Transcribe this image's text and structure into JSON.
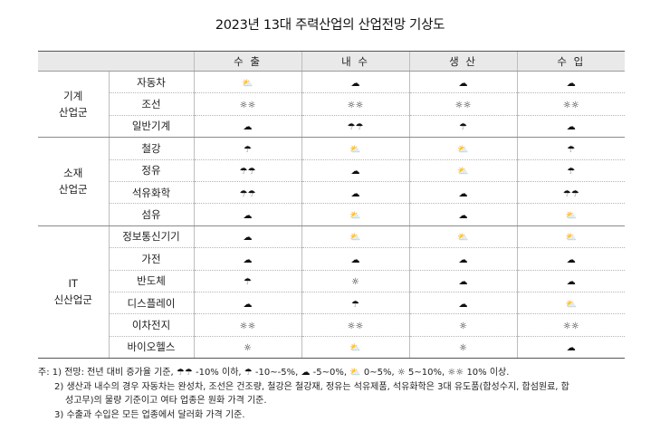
{
  "title": "2023년 13대 주력산업의 산업전망 기상도",
  "columns": [
    "수 출",
    "내 수",
    "생 산",
    "수 입"
  ],
  "icons": {
    "cloudy": "☁",
    "partly_cloudy": "⛅",
    "sunny": "☼",
    "sunny2": "☼☼",
    "umbrella": "☂",
    "umbrella2": "☂☂"
  },
  "groups": [
    {
      "name": "기계\n산업군",
      "rows": [
        {
          "item": "자동차",
          "cells": [
            "⛅",
            "☁",
            "☁",
            "☁"
          ]
        },
        {
          "item": "조선",
          "cells": [
            "☼☼",
            "☼☼",
            "☼☼",
            "☼☼"
          ]
        },
        {
          "item": "일반기계",
          "cells": [
            "☁",
            "☂☂",
            "☂",
            "☁"
          ]
        }
      ]
    },
    {
      "name": "소재\n산업군",
      "rows": [
        {
          "item": "철강",
          "cells": [
            "☂",
            "⛅",
            "⛅",
            "☂"
          ]
        },
        {
          "item": "정유",
          "cells": [
            "☂☂",
            "☁",
            "⛅",
            "☂"
          ]
        },
        {
          "item": "석유화학",
          "cells": [
            "☂☂",
            "☁",
            "☁",
            "☂☂"
          ]
        },
        {
          "item": "섬유",
          "cells": [
            "☁",
            "⛅",
            "☁",
            "⛅"
          ]
        }
      ]
    },
    {
      "name": "IT\n신산업군",
      "rows": [
        {
          "item": "정보통신기기",
          "cells": [
            "☁",
            "⛅",
            "⛅",
            "⛅"
          ]
        },
        {
          "item": "가전",
          "cells": [
            "☁",
            "☁",
            "☁",
            "☁"
          ]
        },
        {
          "item": "반도체",
          "cells": [
            "☂",
            "☼",
            "☁",
            "☁"
          ]
        },
        {
          "item": "디스플레이",
          "cells": [
            "☁",
            "☂",
            "☁",
            "⛅"
          ]
        },
        {
          "item": "이차전지",
          "cells": [
            "☼☼",
            "☼☼",
            "☼",
            "☼☼"
          ]
        },
        {
          "item": "바이오헬스",
          "cells": [
            "☼",
            "⛅",
            "☼",
            "☁"
          ]
        }
      ]
    }
  ],
  "notes": {
    "prefix": "주:",
    "note1_a": "1) 전망: 전년 대비 증가율 기준,",
    "note1_b": " -10% 이하,",
    "note1_c": " -10~-5%,",
    "note1_d": " -5~0%,",
    "note1_e": " 0~5%,",
    "note1_f": " 5~10%,",
    "note1_g": " 10% 이상.",
    "note2_line1": "2) 생산과 내수의 경우 자동차는 완성차, 조선은 건조량, 철강은 철강재, 정유는 석유제품, 석유화학은 3대 유도품(합성수지, 합섬원료, 합",
    "note2_line2": "성고무)의 물량 기준이고 여타 업종은 원화 가격 기준.",
    "note3": "3) 수출과 수입은 모든 업종에서 달러화 가격 기준."
  }
}
